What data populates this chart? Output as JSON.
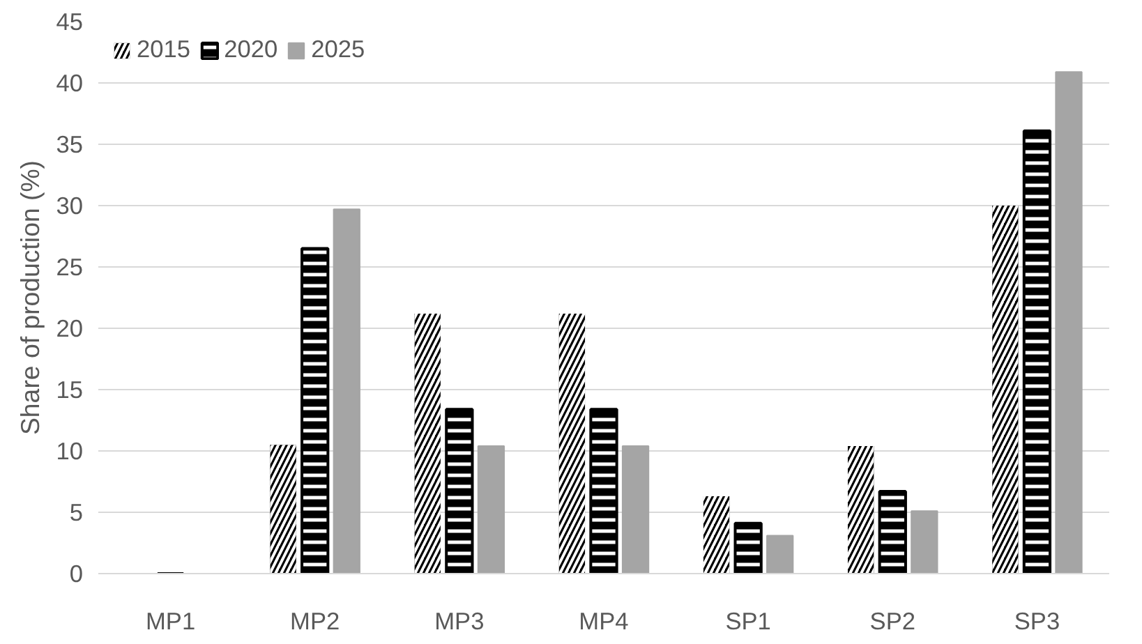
{
  "chart_data": {
    "type": "bar",
    "ylabel": "Share of production (%)",
    "categories": [
      "MP1",
      "MP2",
      "MP3",
      "MP4",
      "SP1",
      "SP2",
      "SP3"
    ],
    "series": [
      {
        "name": "2015",
        "color": "#000000",
        "values": [
          0,
          10.5,
          21.2,
          21.2,
          6.3,
          10.4,
          30.0
        ]
      },
      {
        "name": "2020",
        "color": "#000000",
        "values": [
          0,
          26.5,
          13.4,
          13.4,
          4.1,
          6.7,
          36.1
        ]
      },
      {
        "name": "2025",
        "color": "#a5a5a5",
        "values": [
          0,
          29.7,
          10.4,
          10.4,
          3.1,
          5.1,
          40.9
        ]
      }
    ],
    "ylim": [
      0,
      45
    ],
    "yticks": [
      0,
      5,
      10,
      15,
      20,
      25,
      30,
      35,
      40,
      45
    ],
    "grid": "y",
    "legend": "top left"
  }
}
